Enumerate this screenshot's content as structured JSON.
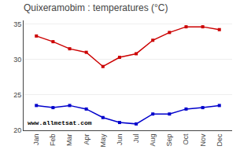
{
  "chart_data": {
    "type": "line",
    "title": "Quixeramobim : temperatures (°C)",
    "categories": [
      "Jan",
      "Feb",
      "Mar",
      "Apr",
      "May",
      "Jun",
      "Jul",
      "Aug",
      "Sep",
      "Oct",
      "Nov",
      "Dec"
    ],
    "series": [
      {
        "color": "#cc0000",
        "marker": "square",
        "values": [
          33.3,
          32.5,
          31.5,
          31.0,
          29.0,
          30.3,
          30.8,
          32.7,
          33.8,
          34.6,
          34.6,
          34.2
        ]
      },
      {
        "color": "#0000cc",
        "marker": "square",
        "values": [
          23.5,
          23.2,
          23.5,
          23.0,
          21.8,
          21.1,
          20.9,
          22.3,
          22.3,
          23.0,
          23.2,
          23.5
        ]
      }
    ],
    "ylim": [
      20,
      35.5
    ],
    "yticks": [
      20,
      25,
      30,
      35
    ],
    "grid": true,
    "annotations": [
      "www.allmetsat.com"
    ]
  }
}
